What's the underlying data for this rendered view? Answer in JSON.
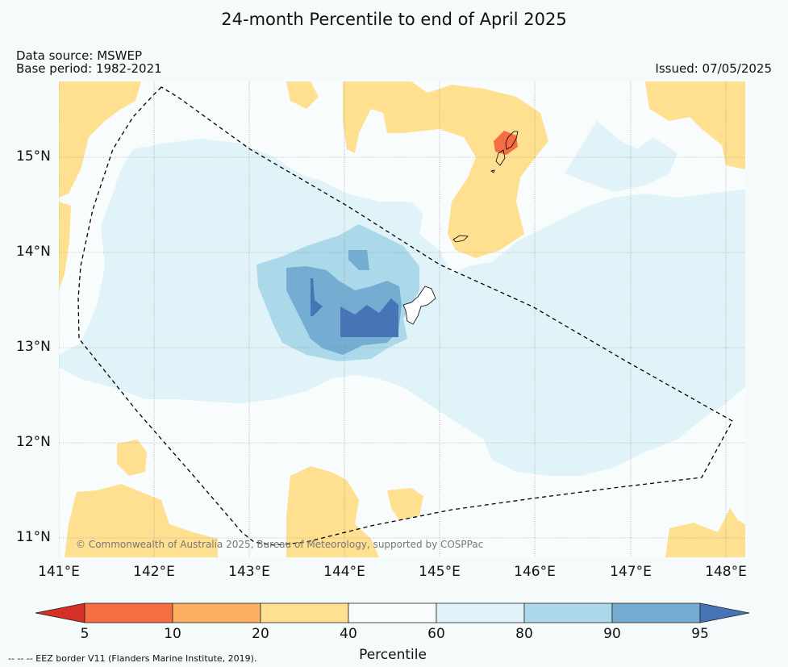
{
  "title": "24-month Percentile to end of April 2025",
  "data_source": "Data source: MSWEP",
  "base_period": "Base period: 1982-2021",
  "issued": "Issued: 07/05/2025",
  "credit": "© Commonwealth of Australia 2025, Bureau of Meteorology, supported by COSPPac",
  "footnote": "--  --  -- EEZ border V11 (Flanders Marine Institute, 2019).",
  "latitude_labels": [
    "15°N",
    "14°N",
    "13°N",
    "12°N",
    "11°N"
  ],
  "longitude_labels": [
    "141°E",
    "142°E",
    "143°E",
    "144°E",
    "145°E",
    "146°E",
    "147°E",
    "148°E"
  ],
  "colorbar": {
    "title": "Percentile",
    "tick_labels": [
      "5",
      "10",
      "20",
      "40",
      "60",
      "80",
      "90",
      "95"
    ],
    "bins": [
      {
        "range": "<5",
        "color": "#d73027"
      },
      {
        "range": "5-10",
        "color": "#f46d43"
      },
      {
        "range": "10-20",
        "color": "#fdae61"
      },
      {
        "range": "20-40",
        "color": "#fee090"
      },
      {
        "range": "40-60",
        "color": "#f8fcfc"
      },
      {
        "range": "60-80",
        "color": "#e0f3f8"
      },
      {
        "range": "80-90",
        "color": "#abd9e9"
      },
      {
        "range": "90-95",
        "color": "#74add1"
      },
      {
        "range": ">95",
        "color": "#4575b4"
      }
    ]
  }
}
